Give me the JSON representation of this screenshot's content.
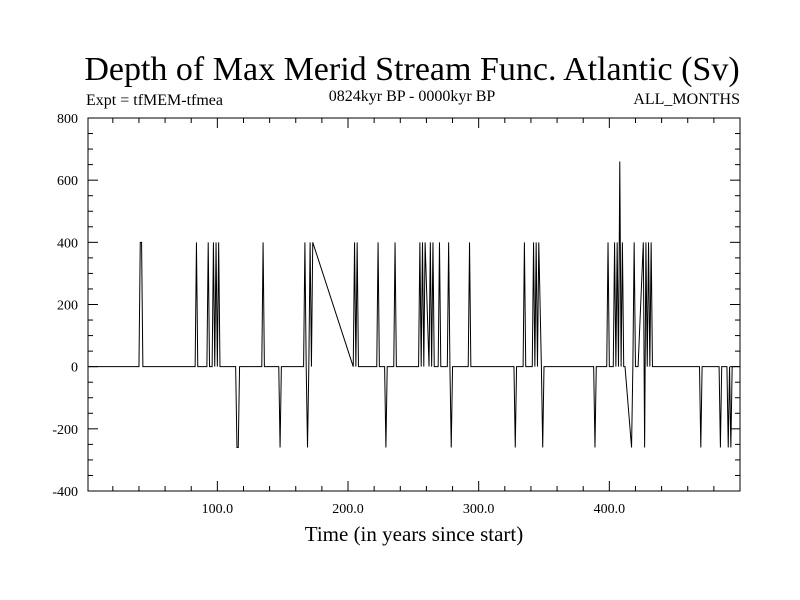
{
  "chart_data": {
    "type": "line",
    "title": "Depth of Max Merid Stream Func. Atlantic (Sv)",
    "subtitle_left": "Expt = tfMEM-tfmea",
    "subtitle_center": "0824kyr BP - 0000kyr BP",
    "subtitle_right": "ALL_MONTHS",
    "xlabel": "Time (in years since start)",
    "ylabel": "",
    "xlim": [
      1,
      500
    ],
    "ylim": [
      -400,
      800
    ],
    "x_ticks": [
      100,
      200,
      300,
      400
    ],
    "x_tick_labels": [
      "100.0",
      "200.0",
      "300.0",
      "400.0"
    ],
    "y_ticks": [
      -400,
      -200,
      0,
      200,
      400,
      600,
      800
    ],
    "y_tick_labels": [
      "-400",
      "-200",
      "0",
      "200",
      "400",
      "600",
      "800"
    ],
    "grid": false,
    "legend": "none",
    "line_color": "#000000",
    "series": [
      {
        "x": [
          1,
          40,
          41,
          42,
          43,
          44,
          83,
          84,
          85,
          92,
          93,
          94,
          96,
          97,
          98,
          99,
          100,
          101,
          102,
          114,
          115,
          116,
          117,
          134,
          135,
          136,
          147,
          148,
          149,
          166,
          167,
          168,
          169,
          170,
          171,
          172,
          173,
          204,
          205,
          206,
          207,
          208,
          222,
          223,
          224,
          228,
          229,
          230,
          235,
          236,
          237,
          254,
          255,
          256,
          257,
          258,
          259,
          262,
          263,
          264,
          265,
          266,
          269,
          270,
          271,
          276,
          277,
          278,
          279,
          280,
          281,
          292,
          293,
          294,
          327,
          328,
          329,
          334,
          335,
          336,
          341,
          342,
          343,
          344,
          345,
          346,
          348,
          349,
          350,
          388,
          389,
          390,
          398,
          399,
          400,
          403,
          404,
          405,
          406,
          407,
          408,
          409,
          410,
          411,
          412,
          417,
          418,
          419,
          420,
          421,
          422,
          426,
          427,
          428,
          429,
          430,
          431,
          432,
          433,
          469,
          470,
          471,
          484,
          485,
          486,
          490,
          491,
          492,
          493,
          494,
          495,
          500
        ],
        "y": [
          0,
          0,
          400,
          400,
          0,
          0,
          0,
          400,
          0,
          0,
          400,
          0,
          0,
          400,
          0,
          400,
          0,
          400,
          0,
          0,
          -260,
          -260,
          0,
          0,
          400,
          0,
          0,
          -260,
          0,
          0,
          400,
          0,
          -260,
          0,
          400,
          0,
          400,
          0,
          400,
          0,
          400,
          0,
          0,
          400,
          0,
          0,
          -260,
          0,
          0,
          400,
          0,
          0,
          400,
          0,
          400,
          0,
          400,
          0,
          400,
          0,
          400,
          0,
          0,
          400,
          0,
          0,
          400,
          0,
          -260,
          0,
          0,
          0,
          400,
          0,
          0,
          -260,
          0,
          0,
          400,
          0,
          0,
          400,
          0,
          400,
          0,
          400,
          0,
          -260,
          0,
          0,
          -260,
          0,
          0,
          400,
          0,
          0,
          400,
          0,
          400,
          0,
          660,
          0,
          400,
          0,
          0,
          -260,
          0,
          400,
          0,
          0,
          0,
          400,
          -260,
          400,
          0,
          400,
          0,
          400,
          0,
          0,
          -260,
          0,
          0,
          -260,
          0,
          0,
          -260,
          0,
          -260,
          0,
          0,
          0
        ]
      }
    ]
  }
}
